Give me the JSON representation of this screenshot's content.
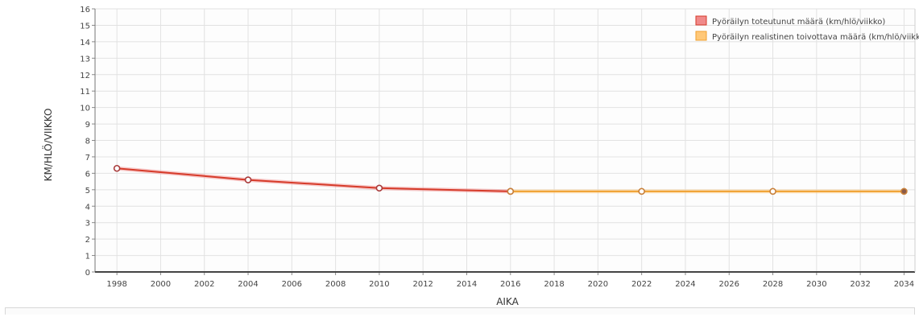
{
  "chart_data": {
    "type": "line",
    "title": "",
    "xlabel": "AIKA",
    "ylabel": "KM/HLÖ/VIIKKO",
    "xlim": [
      1997,
      2034.5
    ],
    "ylim": [
      0,
      16
    ],
    "x_ticks": [
      "1998",
      "2000",
      "2002",
      "2004",
      "2006",
      "2008",
      "2010",
      "2012",
      "2014",
      "2016",
      "2018",
      "2020",
      "2022",
      "2024",
      "2026",
      "2028",
      "2030",
      "2032",
      "2034"
    ],
    "y_ticks": [
      "0",
      "1",
      "2",
      "3",
      "4",
      "5",
      "6",
      "7",
      "8",
      "9",
      "10",
      "11",
      "12",
      "13",
      "14",
      "15",
      "16"
    ],
    "grid": true,
    "legend_position": "top-right",
    "series": [
      {
        "name": "Pyöräilyn toteutunut määrä (km/hlö/viikko)",
        "color": "#d63b2a",
        "fill": "#f08a8a",
        "x": [
          1998,
          2004,
          2010,
          2016
        ],
        "y": [
          6.3,
          5.6,
          5.1,
          4.9
        ]
      },
      {
        "name": "Pyöräilyn realistinen toivottava määrä (km/hlö/viikko)",
        "color": "#f0a030",
        "fill": "#ffc878",
        "x": [
          2016,
          2022,
          2028,
          2034
        ],
        "y": [
          4.9,
          4.9,
          4.9,
          4.9
        ]
      }
    ]
  }
}
